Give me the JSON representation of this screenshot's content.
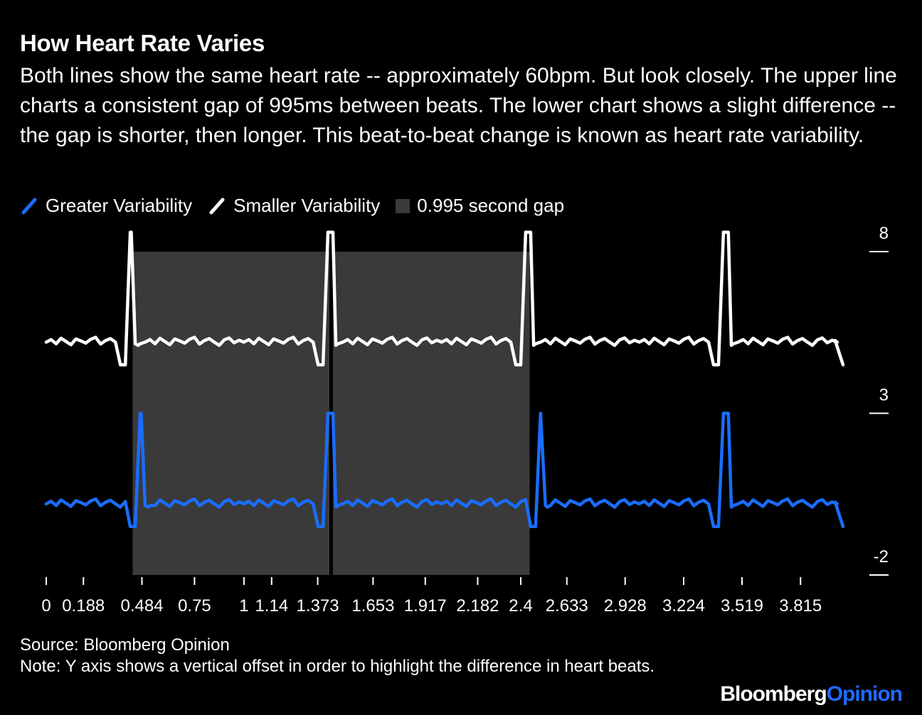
{
  "header": {
    "title": "How Heart Rate Varies",
    "subtitle": "Both lines show the same heart rate -- approximately 60bpm. But look closely. The upper line charts a consistent gap of 995ms between beats. The lower chart shows a slight difference -- the gap is shorter, then longer. This beat-to-beat change is known as heart rate variability."
  },
  "legend": {
    "greater": "Greater Variability",
    "smaller": "Smaller Variability",
    "gap": "0.995 second gap"
  },
  "colors": {
    "background": "#000000",
    "greater": "#1a6dff",
    "smaller": "#ffffff",
    "gap": "#3a3a3a",
    "axis": "#ffffff"
  },
  "chart_data": {
    "type": "line",
    "xlim": [
      0,
      4.03
    ],
    "ylim": [
      -2,
      8
    ],
    "grid": false,
    "x_ticks": [
      0,
      0.188,
      0.484,
      0.75,
      1,
      1.14,
      1.373,
      1.653,
      1.917,
      2.182,
      2.4,
      2.633,
      2.928,
      3.224,
      3.519,
      3.815
    ],
    "x_tick_labels": [
      "0",
      "0.188",
      "0.484",
      "0.75",
      "1",
      "1.14",
      "1.373",
      "1.653",
      "1.917",
      "2.182",
      "2.4",
      "2.633",
      "2.928",
      "3.224",
      "3.519",
      "3.815"
    ],
    "y_ticks": [
      8,
      3,
      -2
    ],
    "y_tick_labels": [
      "8",
      "3",
      "-2"
    ],
    "gap_bands": [
      [
        0.437,
        1.432
      ],
      [
        1.45,
        2.445
      ]
    ],
    "series": [
      {
        "name": "Smaller Variability",
        "beats": [
          0.43,
          1.43,
          2.43,
          3.43
        ],
        "baseline": 5.2,
        "peak": 8.6,
        "trough": 4.5,
        "end": 4.5
      },
      {
        "name": "Greater Variability",
        "beats": [
          0.48,
          1.43,
          2.5,
          3.43
        ],
        "baseline": 0.2,
        "peak": 3.0,
        "trough": -0.5,
        "end": -0.5
      }
    ]
  },
  "footer": {
    "source": "Source: Bloomberg Opinion",
    "note": "Note: Y axis shows a vertical offset in order to highlight the difference in heart beats."
  },
  "brand": {
    "part1": "Bloomberg",
    "part2": "Opinion"
  }
}
